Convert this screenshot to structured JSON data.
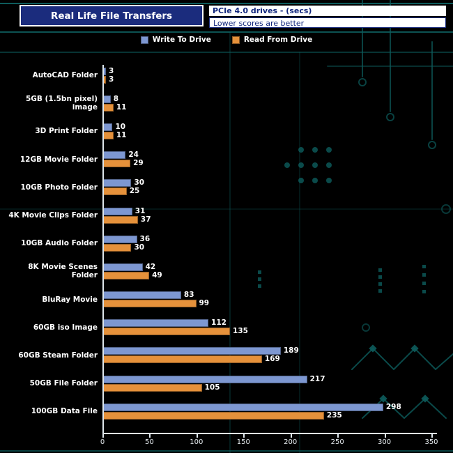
{
  "header": {
    "title": "Real Life File Transfers",
    "subtitle1": "PCIe 4.0 drives - (secs)",
    "subtitle2": "Lower scores are better"
  },
  "legend": [
    {
      "label": "Write To  Drive",
      "color": "#7d97d1"
    },
    {
      "label": "Read From  Drive",
      "color": "#e5913b"
    }
  ],
  "colors": {
    "background": "#000000",
    "title_box": "#1b2c7d",
    "write_bar": "#7d97d1",
    "read_bar": "#e5913b",
    "axis": "#dfe7ec",
    "circuit_decoration": "#0d5c5c"
  },
  "chart_data": {
    "type": "bar",
    "orientation": "horizontal",
    "title": "Real Life File Transfers",
    "subtitle": "PCIe 4.0 drives - (secs)",
    "note": "Lower scores are better",
    "xlabel": "",
    "ylabel": "",
    "xlim": [
      0,
      350
    ],
    "xticks": [
      0,
      50,
      100,
      150,
      200,
      250,
      300,
      350
    ],
    "grid": false,
    "legend_position": "top",
    "categories": [
      "AutoCAD Folder",
      "5GB (1.5bn pixel) image",
      "3D Print Folder",
      "12GB Movie Folder",
      "10GB Photo Folder",
      "4K Movie Clips Folder",
      "10GB Audio Folder",
      "8K Movie Scenes Folder",
      "BluRay Movie",
      "60GB iso Image",
      "60GB Steam Folder",
      "50GB File Folder",
      "100GB Data File"
    ],
    "series": [
      {
        "name": "Write To Drive",
        "color": "#7d97d1",
        "values": [
          3,
          8,
          10,
          24,
          30,
          31,
          36,
          42,
          83,
          112,
          189,
          217,
          298
        ]
      },
      {
        "name": "Read From Drive",
        "color": "#e5913b",
        "values": [
          3,
          11,
          11,
          29,
          25,
          37,
          30,
          49,
          99,
          135,
          169,
          105,
          235
        ]
      }
    ]
  }
}
